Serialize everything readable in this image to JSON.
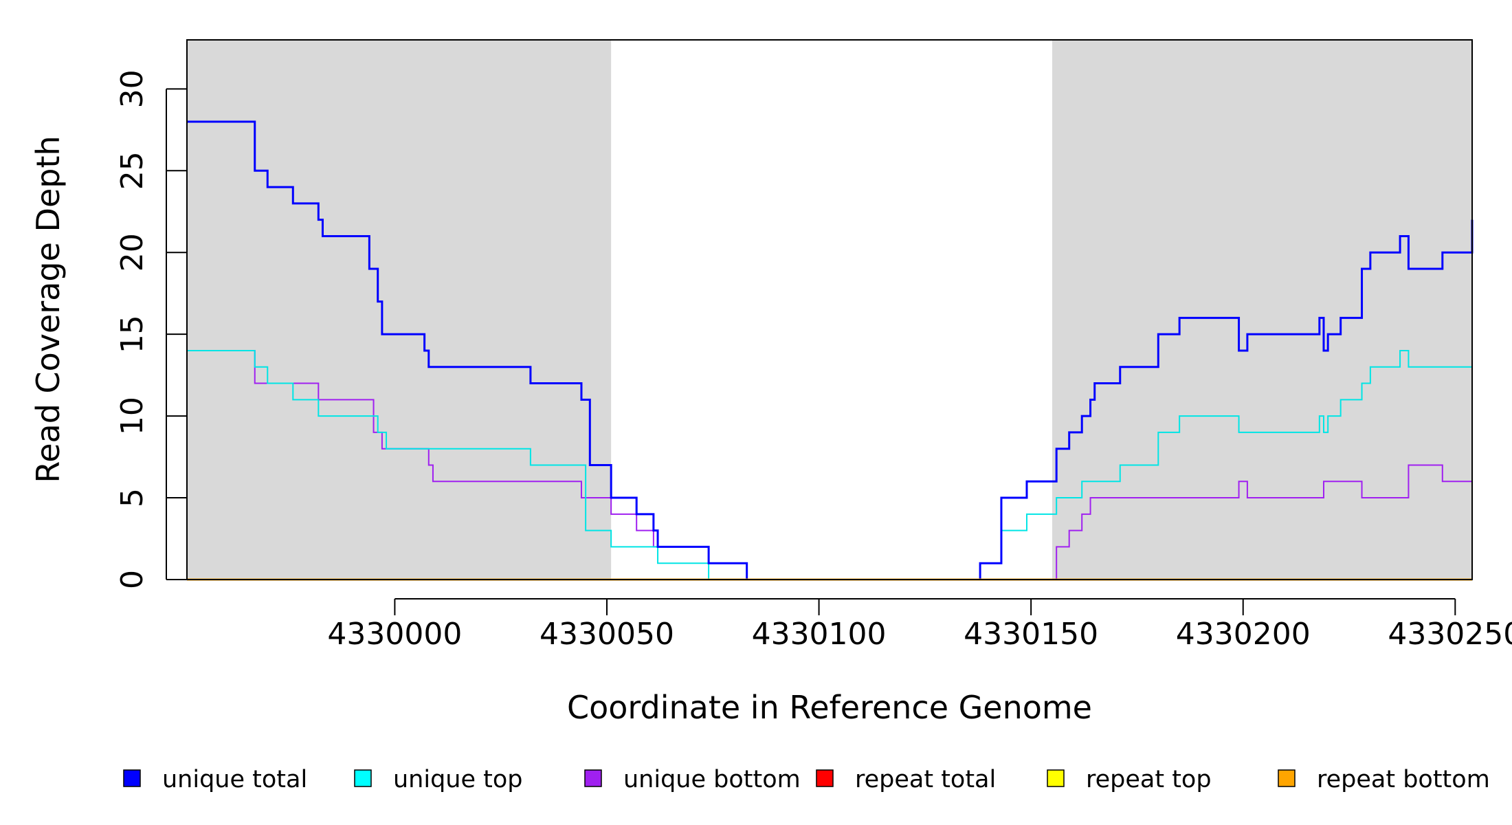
{
  "chart_data": {
    "type": "line",
    "xlabel": "Coordinate in Reference Genome",
    "ylabel": "Read Coverage Depth",
    "xlim": [
      4329951,
      4330254
    ],
    "ylim": [
      0,
      33
    ],
    "x_ticks": [
      4330000,
      4330050,
      4330100,
      4330150,
      4330200,
      4330250
    ],
    "x_tick_labels": [
      "4330000",
      "4330050",
      "4330100",
      "4330150",
      "4330200",
      "4330250"
    ],
    "y_ticks": [
      0,
      5,
      10,
      15,
      20,
      25,
      30
    ],
    "y_tick_labels": [
      "0",
      "5",
      "10",
      "15",
      "20",
      "25",
      "30"
    ],
    "shaded_regions": [
      {
        "x0": 4329951,
        "x1": 4330051,
        "color": "#d9d9d9"
      },
      {
        "x0": 4330155,
        "x1": 4330254,
        "color": "#d9d9d9"
      }
    ],
    "series": [
      {
        "name": "unique total",
        "color": "#0000ff",
        "style": "step-post",
        "x": [
          4329951,
          4329967,
          4329970,
          4329976,
          4329982,
          4329983,
          4329994,
          4329996,
          4329997,
          4330007,
          4330008,
          4330032,
          4330044,
          4330046,
          4330051,
          4330057,
          4330061,
          4330062,
          4330074,
          4330083,
          4330138,
          4330143,
          4330149,
          4330156,
          4330159,
          4330162,
          4330164,
          4330165,
          4330171,
          4330180,
          4330185,
          4330199,
          4330201,
          4330218,
          4330219,
          4330220,
          4330223,
          4330228,
          4330230,
          4330237,
          4330239,
          4330247,
          4330254
        ],
        "y": [
          28,
          25,
          24,
          23,
          22,
          21,
          19,
          17,
          15,
          14,
          13,
          12,
          11,
          7,
          5,
          4,
          3,
          2,
          1,
          0,
          1,
          5,
          6,
          8,
          9,
          10,
          11,
          12,
          13,
          15,
          16,
          14,
          15,
          16,
          14,
          15,
          16,
          19,
          20,
          21,
          19,
          20,
          22
        ]
      },
      {
        "name": "unique top",
        "color": "#00e5e5",
        "style": "step-post",
        "x": [
          4329951,
          4329967,
          4329970,
          4329976,
          4329982,
          4329996,
          4329998,
          4330032,
          4330045,
          4330051,
          4330062,
          4330074,
          4330083,
          4330138,
          4330143,
          4330149,
          4330156,
          4330162,
          4330171,
          4330180,
          4330185,
          4330199,
          4330218,
          4330219,
          4330220,
          4330223,
          4330228,
          4330230,
          4330237,
          4330239,
          4330254
        ],
        "y": [
          14,
          13,
          12,
          11,
          10,
          9,
          8,
          7,
          3,
          2,
          1,
          0,
          0,
          1,
          3,
          4,
          5,
          6,
          7,
          9,
          10,
          9,
          10,
          9,
          10,
          11,
          12,
          13,
          14,
          13,
          13
        ]
      },
      {
        "name": "unique bottom",
        "color": "#a020f0",
        "style": "step-post",
        "x": [
          4329951,
          4329967,
          4329982,
          4329995,
          4329997,
          4330008,
          4330009,
          4330044,
          4330051,
          4330057,
          4330061,
          4330074,
          4330083,
          4330143,
          4330156,
          4330159,
          4330162,
          4330164,
          4330199,
          4330201,
          4330219,
          4330228,
          4330239,
          4330247,
          4330254
        ],
        "y": [
          14,
          12,
          11,
          9,
          8,
          7,
          6,
          5,
          4,
          3,
          2,
          1,
          0,
          0,
          2,
          3,
          4,
          5,
          6,
          5,
          6,
          5,
          7,
          6,
          7
        ]
      },
      {
        "name": "repeat total",
        "color": "#ff0000",
        "style": "step-post",
        "x": [
          4329951,
          4330254
        ],
        "y": [
          0,
          0
        ]
      },
      {
        "name": "repeat top",
        "color": "#ffff00",
        "style": "step-post",
        "x": [
          4329951,
          4330254
        ],
        "y": [
          0,
          0
        ]
      },
      {
        "name": "repeat bottom",
        "color": "#ffa500",
        "style": "step-post",
        "x": [
          4329951,
          4330254
        ],
        "y": [
          0,
          0
        ]
      }
    ],
    "legend": {
      "placement": "bottom",
      "items": [
        {
          "label": "unique total",
          "color": "#0000ff"
        },
        {
          "label": "unique top",
          "color": "#00ffff"
        },
        {
          "label": "unique bottom",
          "color": "#a020f0"
        },
        {
          "label": "repeat total",
          "color": "#ff0000"
        },
        {
          "label": "repeat top",
          "color": "#ffff00"
        },
        {
          "label": "repeat bottom",
          "color": "#ffa500"
        }
      ]
    },
    "grid": false,
    "plot_background": "#ffffff"
  }
}
